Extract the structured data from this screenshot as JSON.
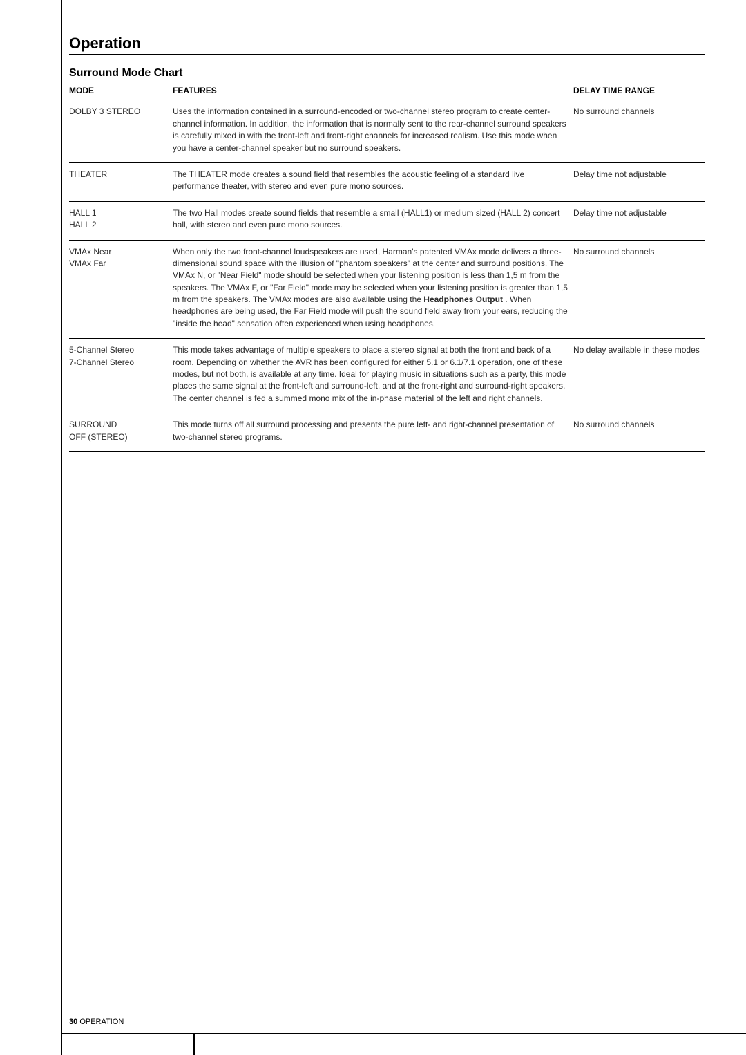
{
  "page": {
    "section_title": "Operation",
    "sub_title": "Surround Mode Chart",
    "footer_page": "30",
    "footer_label": "OPERATION"
  },
  "table": {
    "headers": {
      "mode": "MODE",
      "features": "FEATURES",
      "delay": "DELAY TIME RANGE"
    },
    "rows": [
      {
        "mode": "DOLBY 3 STEREO",
        "features": "Uses the information contained in a surround-encoded or two-channel stereo program to create center-channel information. In addition, the information that is normally sent to the rear-channel surround speakers is carefully mixed in with the front-left and front-right channels for increased realism. Use this mode when you have a center-channel speaker but no surround speakers.",
        "delay": "No surround channels"
      },
      {
        "mode": "THEATER",
        "features": "The THEATER mode creates a sound field that resembles the acoustic feeling of a standard live performance theater, with stereo and even pure mono sources.",
        "delay": "Delay time not adjustable"
      },
      {
        "mode": "HALL 1\nHALL 2",
        "features": "The two Hall modes create sound fields that resemble a small (HALL1) or medium sized (HALL 2) concert hall, with stereo and even pure mono sources.",
        "delay": "Delay time not adjustable"
      },
      {
        "mode": "VMAx Near\nVMAx Far",
        "features_pre": "When only the two front-channel loudspeakers are used, Harman's patented VMAx mode delivers a three-dimensional sound space with the illusion of \"phantom speakers\" at the center and surround positions. The VMAx N, or \"Near Field\" mode should be selected when your listening position is less than 1,5 m from the speakers. The VMAx F, or \"Far Field\" mode may be selected when your listening position is greater than 1,5 m from the speakers. The VMAx modes are also available using the ",
        "features_bold": "Headphones Output",
        "features_post": "      . When headphones are being used, the Far Field mode will push the sound field away from your ears, reducing the \"inside the head\" sensation often experienced when using headphones.",
        "delay": "No surround channels"
      },
      {
        "mode": "5-Channel Stereo\n7-Channel Stereo",
        "features": "This mode takes advantage of multiple speakers to place a stereo signal at both the front and back of a room. Depending on whether the AVR has been configured for either 5.1 or 6.1/7.1 operation, one of these modes, but not both, is available at any time. Ideal for playing music in situations such as a party, this mode places the same signal at the front-left and surround-left, and at the front-right and surround-right speakers. The center channel is fed a summed mono mix of the in-phase material of the left and right channels.",
        "delay": "No delay available in these modes"
      },
      {
        "mode": "SURROUND\nOFF (STEREO)",
        "features": "This mode turns off all surround processing and presents the pure left- and right-channel presentation of two-channel stereo programs.",
        "delay": "No surround channels"
      }
    ]
  }
}
